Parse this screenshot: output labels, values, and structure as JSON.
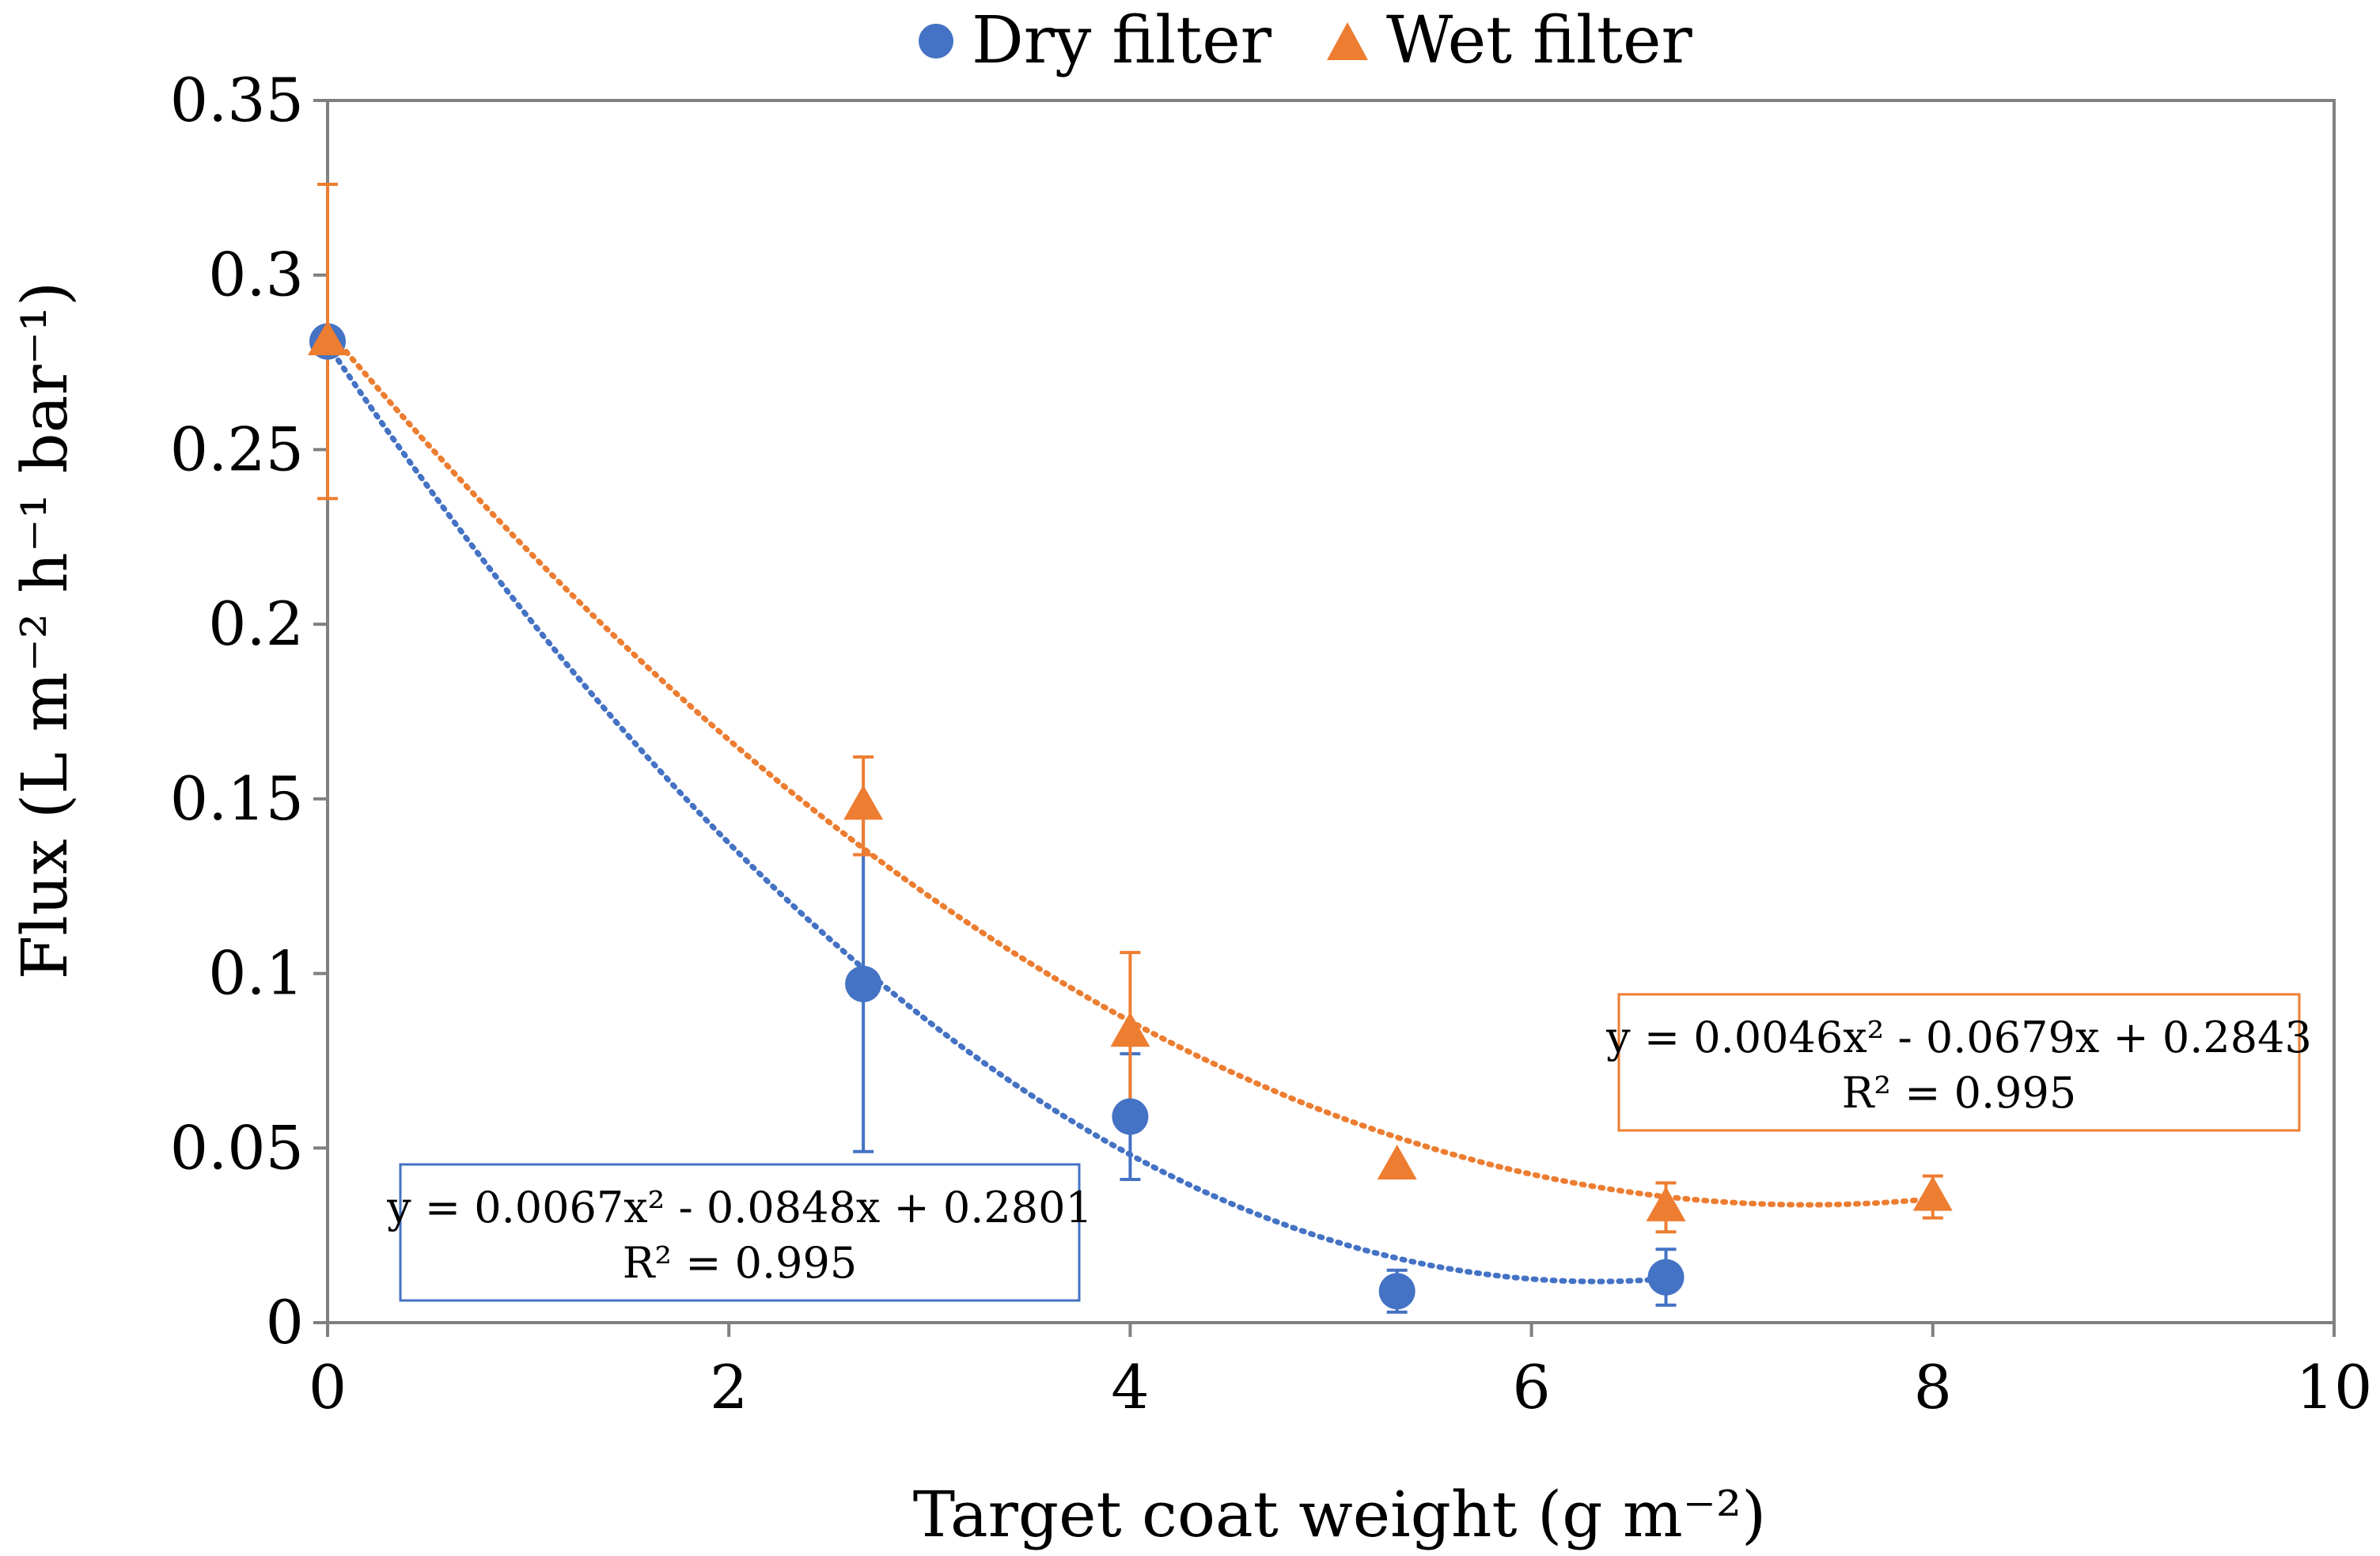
{
  "chart_data": {
    "type": "scatter",
    "title": "",
    "xlabel": "Target coat weight (g m⁻²)",
    "ylabel": "Flux (L m⁻² h⁻¹ bar⁻¹)",
    "xlim": [
      0,
      10
    ],
    "ylim": [
      0,
      0.35
    ],
    "xticks": [
      "0",
      "2",
      "4",
      "6",
      "8",
      "10"
    ],
    "yticks": [
      "0",
      "0.05",
      "0.1",
      "0.15",
      "0.2",
      "0.25",
      "0.3",
      "0.35"
    ],
    "legend_position": "top-center",
    "grid": false,
    "series": [
      {
        "name": "Dry filter",
        "marker": "circle",
        "color": "#4472C4",
        "x": [
          0,
          2.67,
          4.0,
          5.33,
          6.67
        ],
        "y": [
          0.281,
          0.097,
          0.059,
          0.009,
          0.013
        ],
        "error": [
          0.0,
          0.048,
          0.018,
          0.006,
          0.008
        ],
        "trendline": {
          "type": "polynomial-2",
          "coefficients": [
            0.0067,
            -0.0848,
            0.2801
          ],
          "x_range": [
            0,
            6.67
          ],
          "equation": "y = 0.0067x² - 0.0848x + 0.2801",
          "r2": "R² = 0.995"
        }
      },
      {
        "name": "Wet filter",
        "marker": "triangle",
        "color": "#ED7D31",
        "x": [
          0,
          2.67,
          4.0,
          5.33,
          6.67,
          8.0
        ],
        "y": [
          0.281,
          0.148,
          0.083,
          0.045,
          0.033,
          0.036
        ],
        "error": [
          0.045,
          0.014,
          0.023,
          0.0,
          0.007,
          0.006
        ],
        "trendline": {
          "type": "polynomial-2",
          "coefficients": [
            0.0046,
            -0.0679,
            0.2843
          ],
          "x_range": [
            0,
            8.0
          ],
          "equation": "y = 0.0046x² - 0.0679x + 0.2843",
          "r2": "R² = 0.995"
        }
      }
    ]
  }
}
